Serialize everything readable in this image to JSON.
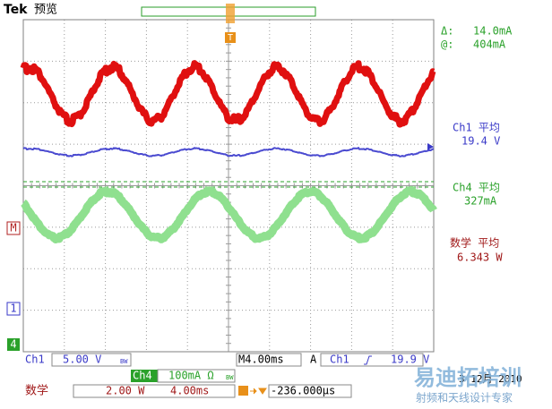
{
  "header": {
    "brand": "Tek",
    "mode": "预览"
  },
  "markers": {
    "trigger": "T",
    "math": "M",
    "ch1": "1",
    "ch4": "4"
  },
  "readouts": {
    "delta_label": "Δ:",
    "delta": "14.0mA",
    "at_label": "@:",
    "at": "404mA",
    "ch1_label": "Ch1 平均",
    "ch1_value": "19.4 V",
    "ch4_label": "Ch4 平均",
    "ch4_value": "327mA",
    "math_label": "数学 平均",
    "math_value": "6.343 W"
  },
  "status": {
    "ch1": "Ch1",
    "ch1_scale": "5.00 V",
    "ch1_bw": "BW",
    "timebase": "M4.00ms",
    "trigger_mode": "A",
    "trigger_source": "Ch1",
    "trigger_level": "19.9 V",
    "ch4": "Ch4",
    "ch4_scale": "100mA Ω",
    "ch4_bw": "BW",
    "math": "数学",
    "math_scale": "2.00 W",
    "math_time": "4.00ms",
    "position": "-236.000μs",
    "date": "3 12月 2010"
  },
  "watermark": {
    "title": "易迪拓培训",
    "subtitle": "射频和天线设计专家"
  }
}
